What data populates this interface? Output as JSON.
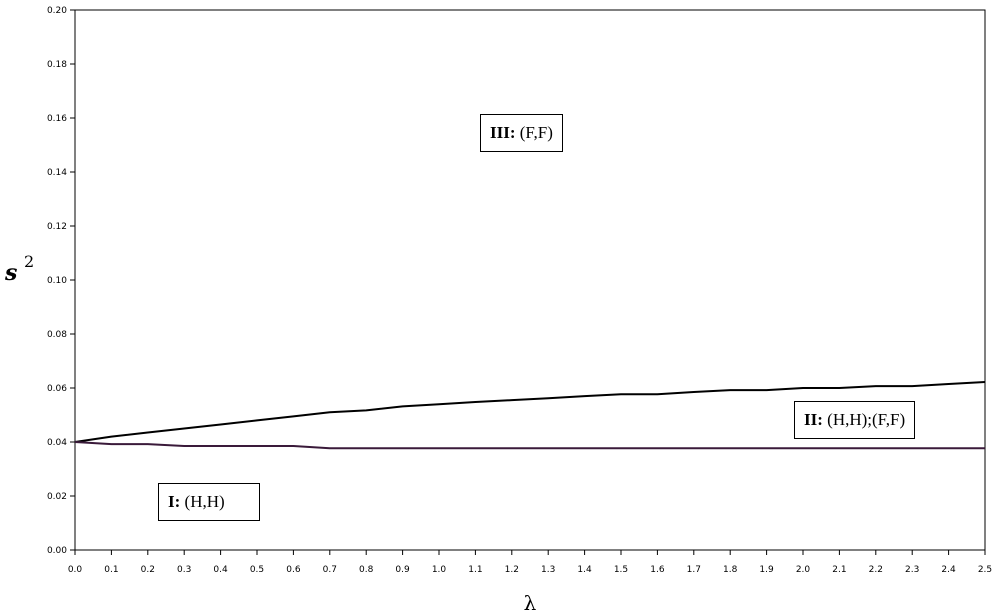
{
  "chart_data": {
    "type": "line",
    "xlabel": "λ",
    "ylabel": "s",
    "ylabel_superscript": "2",
    "xlim": [
      0.0,
      2.5
    ],
    "ylim": [
      0.0,
      0.2
    ],
    "x_ticks": [
      "0.0",
      "0.1",
      "0.2",
      "0.3",
      "0.4",
      "0.5",
      "0.6",
      "0.7",
      "0.8",
      "0.9",
      "1.0",
      "1.1",
      "1.2",
      "1.3",
      "1.4",
      "1.5",
      "1.6",
      "1.7",
      "1.8",
      "1.9",
      "2.0",
      "2.1",
      "2.2",
      "2.3",
      "2.4",
      "2.5"
    ],
    "y_ticks": [
      "0.00",
      "0.02",
      "0.04",
      "0.06",
      "0.08",
      "0.10",
      "0.12",
      "0.14",
      "0.16",
      "0.18",
      "0.20"
    ],
    "grid": false,
    "series": [
      {
        "color": "#000000",
        "x": [
          0.0,
          0.1,
          0.2,
          0.3,
          0.4,
          0.5,
          0.6,
          0.7,
          0.8,
          0.9,
          1.0,
          1.1,
          1.2,
          1.3,
          1.4,
          1.5,
          1.6,
          1.7,
          1.8,
          1.9,
          2.0,
          2.1,
          2.2,
          2.3,
          2.4,
          2.5
        ],
        "y": [
          0.04,
          0.042,
          0.0435,
          0.045,
          0.0465,
          0.048,
          0.0495,
          0.051,
          0.0517,
          0.0532,
          0.054,
          0.0548,
          0.0555,
          0.0562,
          0.057,
          0.0577,
          0.0577,
          0.0585,
          0.0592,
          0.0592,
          0.06,
          0.06,
          0.0607,
          0.0607,
          0.0615,
          0.0622
        ]
      },
      {
        "color": "#3a1a3a",
        "x": [
          0.0,
          0.1,
          0.2,
          0.3,
          0.4,
          0.5,
          0.6,
          0.7,
          0.8,
          0.9,
          1.0,
          1.1,
          1.2,
          1.3,
          1.4,
          1.5,
          1.6,
          1.7,
          1.8,
          1.9,
          2.0,
          2.1,
          2.2,
          2.3,
          2.4,
          2.5
        ],
        "y": [
          0.04,
          0.0392,
          0.0392,
          0.0385,
          0.0385,
          0.0385,
          0.0385,
          0.0377,
          0.0377,
          0.0377,
          0.0377,
          0.0377,
          0.0377,
          0.0377,
          0.0377,
          0.0377,
          0.0377,
          0.0377,
          0.0377,
          0.0377,
          0.0377,
          0.0377,
          0.0377,
          0.0377,
          0.0377,
          0.0377
        ]
      }
    ],
    "annotations": [
      {
        "id": "region-3",
        "bold": "III:",
        "text": " (F,F)"
      },
      {
        "id": "region-2",
        "bold": "II:",
        "text": " (H,H);(F,F)"
      },
      {
        "id": "region-1",
        "bold": "I:",
        "text": " (H,H)"
      }
    ]
  }
}
